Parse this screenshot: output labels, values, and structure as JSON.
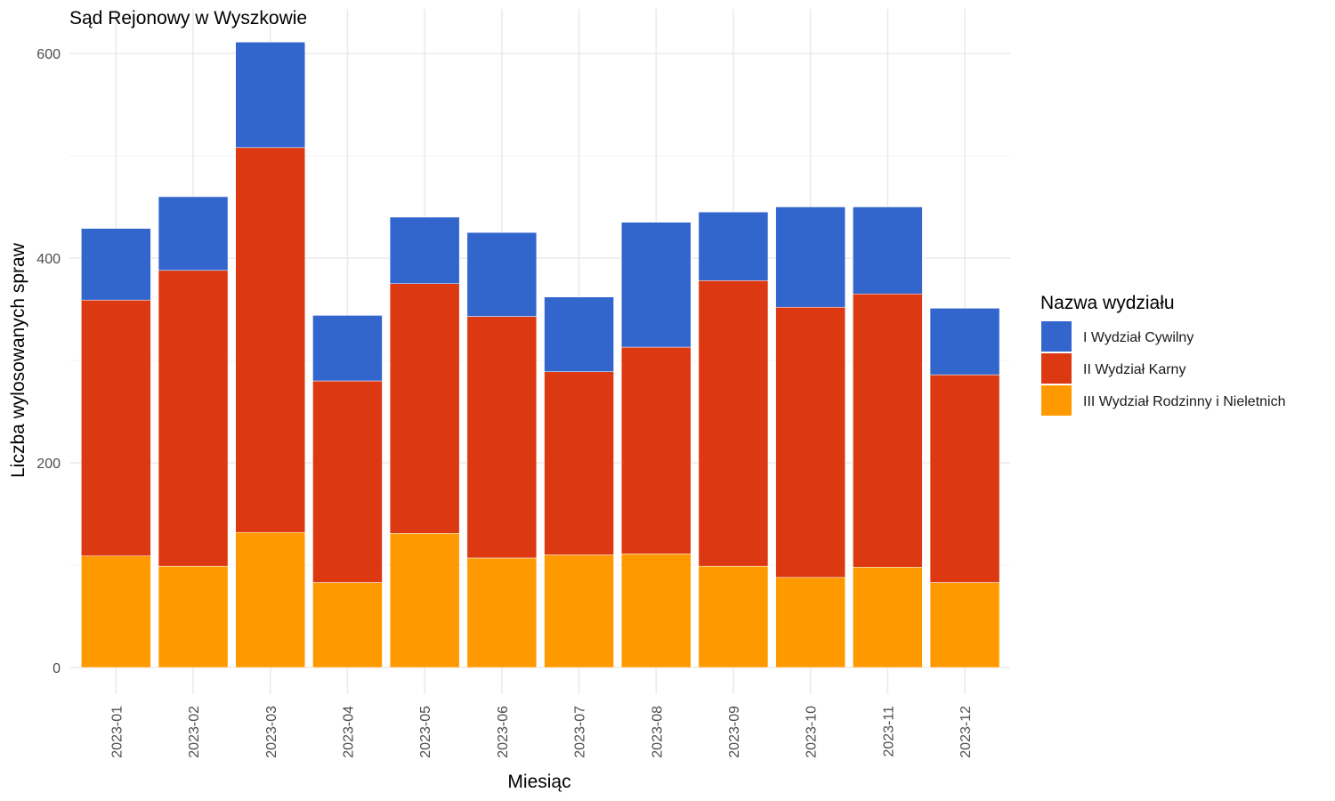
{
  "chart_data": {
    "type": "bar",
    "stacked": true,
    "title": "Sąd Rejonowy w Wyszkowie",
    "xlabel": "Miesiąc",
    "ylabel": "Liczba wylosowanych spraw",
    "ylim": [
      0,
      640
    ],
    "yticks": [
      0,
      200,
      400,
      600
    ],
    "grid": true,
    "legend": {
      "title": "Nazwa wydziału",
      "position": "right"
    },
    "categories": [
      "2023-01",
      "2023-02",
      "2023-03",
      "2023-04",
      "2023-05",
      "2023-06",
      "2023-07",
      "2023-08",
      "2023-09",
      "2023-10",
      "2023-11",
      "2023-12"
    ],
    "series": [
      {
        "name": "I Wydział Cywilny",
        "color": "#3366CC",
        "values": [
          70,
          72,
          103,
          64,
          65,
          82,
          73,
          122,
          67,
          98,
          85,
          65
        ]
      },
      {
        "name": "II Wydział Karny",
        "color": "#DC3912",
        "values": [
          250,
          289,
          376,
          197,
          244,
          236,
          179,
          202,
          279,
          264,
          267,
          203
        ]
      },
      {
        "name": "III Wydział Rodzinny i Nieletnich",
        "color": "#FF9900",
        "values": [
          109,
          99,
          132,
          83,
          131,
          107,
          110,
          111,
          99,
          88,
          98,
          83
        ]
      }
    ]
  }
}
